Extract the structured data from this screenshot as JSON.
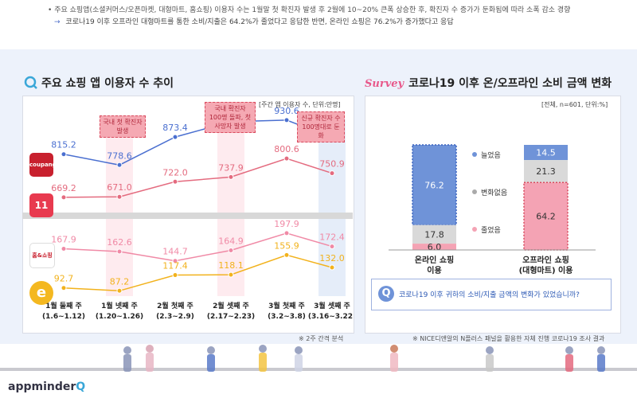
{
  "notes": {
    "line1": "주요 쇼핑앱(소셜커머스/오픈마켓, 대형마트, 홈쇼핑) 이용자 수는 1월말 첫 확진자 발생 후 2월에 10~20% 큰폭 상승한 후, 확진자 수 증가가 둔화됨에 따라 소폭 감소 경향",
    "line2": "코로나19 이후 오프라인 대형마트를 통한 소비/지출은 64.2%가 줄었다고 응답한 반면, 온라인 쇼핑은 76.2%가 증가했다고 응답"
  },
  "left": {
    "title": "주요 쇼핑 앱 이용자 수 추이",
    "unit": "[주간 앱 이용자 수, 단위:만명]",
    "footnote": "※ 2주 간격 분석",
    "callouts": [
      "국내 첫 확진자 발생",
      "국내 확진자 100명 돌파, 첫 사망자 발생",
      "신규 확진자 수 100명대로 둔화"
    ],
    "icons": [
      "coupang",
      "11st",
      "hnsmall",
      "emart"
    ],
    "icon_text": {
      "coupang": "coupang",
      "11st": "11",
      "hnsmall": "홈&쇼핑",
      "emart": "e"
    }
  },
  "right": {
    "title": "코로나19 이후 온/오프라인 소비 금액 변화",
    "survey_badge": "Survey",
    "unit": "[전체, n=601, 단위:%]",
    "question": "코로나19 이후 귀하의 소비/지출 금액의 변화가 있었습니까?",
    "footnote": "※ NICE디앤알의 N플러스 패널을 활용한 자체 진행 코로나19 조사 결과"
  },
  "chart_data": [
    {
      "type": "line",
      "title": "주요 쇼핑 앱 이용자 수 추이",
      "categories": [
        "1월 둘째 주\n(1.6~1.12)",
        "1월 넷째 주\n(1.20~1.26)",
        "2월 첫째 주\n(2.3~2.9)",
        "2월 셋째 주\n(2.17~2.23)",
        "3월 첫째 주\n(3.2~3.8)",
        "3월 셋째 주\n(3.16~3.22)"
      ],
      "series": [
        {
          "name": "coupang",
          "values": [
            815.2,
            778.6,
            873.4,
            925.2,
            930.6,
            872.1
          ],
          "color": "#4a6fd0"
        },
        {
          "name": "11st",
          "values": [
            669.2,
            671.0,
            722.0,
            737.9,
            800.6,
            750.9
          ],
          "color": "#e46b7f"
        },
        {
          "name": "hnsmall",
          "values": [
            167.9,
            162.6,
            144.7,
            164.9,
            197.9,
            172.4
          ],
          "color": "#f08aa6"
        },
        {
          "name": "emart",
          "values": [
            92.7,
            87.2,
            117.4,
            118.1,
            155.9,
            132.0
          ],
          "color": "#f2b21c"
        }
      ],
      "axis_break": true
    },
    {
      "type": "bar",
      "title": "코로나19 이후 온/오프라인 소비 금액 변화",
      "categories": [
        "온라인 쇼핑\n이용",
        "오프라인 쇼핑\n(대형마트) 이용"
      ],
      "series": [
        {
          "name": "늘었음",
          "values": [
            76.2,
            14.5
          ],
          "color": "#6f93d8"
        },
        {
          "name": "변화없음",
          "values": [
            17.8,
            21.3
          ],
          "color": "#d9d9d9"
        },
        {
          "name": "줄었음",
          "values": [
            6.0,
            64.2
          ],
          "color": "#f4a3b4"
        }
      ],
      "stacked": true,
      "legend": [
        "늘었음",
        "변화없음",
        "줄었음"
      ]
    }
  ]
}
